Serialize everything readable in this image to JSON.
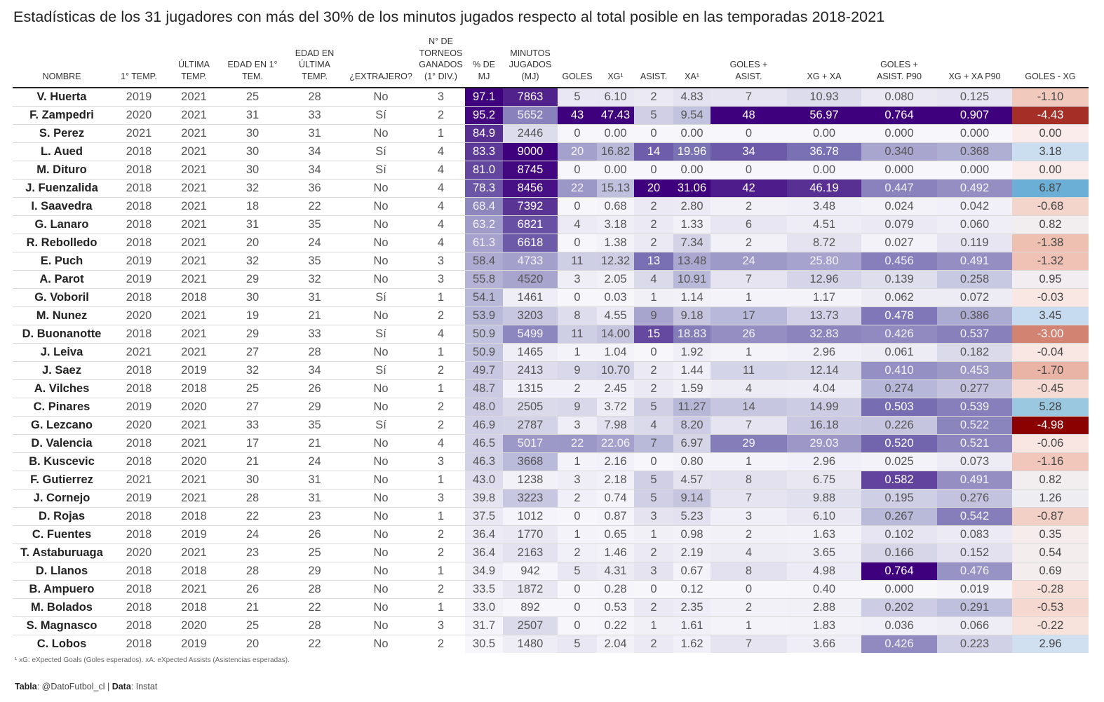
{
  "title": "Estadísticas de los 31 jugadores con más del 30% de los minutos jugados respecto al total posible en las temporadas 2018-2021",
  "columns": [
    {
      "key": "name",
      "label": "NOMBRE"
    },
    {
      "key": "first",
      "label": "1° TEMP."
    },
    {
      "key": "last",
      "label": "ÚLTIMA TEMP."
    },
    {
      "key": "age1",
      "label": "EDAD EN 1° TEM."
    },
    {
      "key": "agel",
      "label": "EDAD EN ÚLTIMA TEMP."
    },
    {
      "key": "foreign",
      "label": "¿EXTRAJERO?"
    },
    {
      "key": "titles",
      "label": "N° DE TORNEOS GANADOS (1° DIV.)"
    },
    {
      "key": "pct",
      "label": "% DE MJ"
    },
    {
      "key": "min",
      "label": "MINUTOS JUGADOS (MJ)"
    },
    {
      "key": "goals",
      "label": "GOLES"
    },
    {
      "key": "xg",
      "label": "XG¹"
    },
    {
      "key": "ast",
      "label": "ASIST."
    },
    {
      "key": "xa",
      "label": "XA¹"
    },
    {
      "key": "ga",
      "label": "GOLES + ASIST."
    },
    {
      "key": "xgxa",
      "label": "XG + XA"
    },
    {
      "key": "ga90",
      "label": "GOLES + ASIST. P90"
    },
    {
      "key": "xgxa90",
      "label": "XG + XA P90"
    },
    {
      "key": "gxg",
      "label": "GOLES - XG"
    }
  ],
  "rows": [
    [
      "V. Huerta",
      "2019",
      "2021",
      "25",
      "28",
      "No",
      "3",
      "97.1",
      "7863",
      "5",
      "6.10",
      "2",
      "4.83",
      "7",
      "10.93",
      "0.080",
      "0.125",
      "-1.10"
    ],
    [
      "F. Zampedri",
      "2020",
      "2021",
      "31",
      "33",
      "Sí",
      "2",
      "95.2",
      "5652",
      "43",
      "47.43",
      "5",
      "9.54",
      "48",
      "56.97",
      "0.764",
      "0.907",
      "-4.43"
    ],
    [
      "S. Perez",
      "2021",
      "2021",
      "30",
      "31",
      "No",
      "1",
      "84.9",
      "2446",
      "0",
      "0.00",
      "0",
      "0.00",
      "0",
      "0.00",
      "0.000",
      "0.000",
      "0.00"
    ],
    [
      "L. Aued",
      "2018",
      "2021",
      "30",
      "34",
      "Sí",
      "4",
      "83.3",
      "9000",
      "20",
      "16.82",
      "14",
      "19.96",
      "34",
      "36.78",
      "0.340",
      "0.368",
      "3.18"
    ],
    [
      "M. Dituro",
      "2018",
      "2021",
      "30",
      "34",
      "Sí",
      "4",
      "81.0",
      "8745",
      "0",
      "0.00",
      "0",
      "0.00",
      "0",
      "0.00",
      "0.000",
      "0.000",
      "0.00"
    ],
    [
      "J. Fuenzalida",
      "2018",
      "2021",
      "32",
      "36",
      "No",
      "4",
      "78.3",
      "8456",
      "22",
      "15.13",
      "20",
      "31.06",
      "42",
      "46.19",
      "0.447",
      "0.492",
      "6.87"
    ],
    [
      "I. Saavedra",
      "2018",
      "2021",
      "18",
      "22",
      "No",
      "4",
      "68.4",
      "7392",
      "0",
      "0.68",
      "2",
      "2.80",
      "2",
      "3.48",
      "0.024",
      "0.042",
      "-0.68"
    ],
    [
      "G. Lanaro",
      "2018",
      "2021",
      "31",
      "35",
      "No",
      "4",
      "63.2",
      "6821",
      "4",
      "3.18",
      "2",
      "1.33",
      "6",
      "4.51",
      "0.079",
      "0.060",
      "0.82"
    ],
    [
      "R. Rebolledo",
      "2018",
      "2021",
      "20",
      "24",
      "No",
      "4",
      "61.3",
      "6618",
      "0",
      "1.38",
      "2",
      "7.34",
      "2",
      "8.72",
      "0.027",
      "0.119",
      "-1.38"
    ],
    [
      "E. Puch",
      "2019",
      "2021",
      "32",
      "35",
      "No",
      "3",
      "58.4",
      "4733",
      "11",
      "12.32",
      "13",
      "13.48",
      "24",
      "25.80",
      "0.456",
      "0.491",
      "-1.32"
    ],
    [
      "A. Parot",
      "2019",
      "2021",
      "29",
      "32",
      "No",
      "3",
      "55.8",
      "4520",
      "3",
      "2.05",
      "4",
      "10.91",
      "7",
      "12.96",
      "0.139",
      "0.258",
      "0.95"
    ],
    [
      "G. Voboril",
      "2018",
      "2018",
      "30",
      "31",
      "Sí",
      "1",
      "54.1",
      "1461",
      "0",
      "0.03",
      "1",
      "1.14",
      "1",
      "1.17",
      "0.062",
      "0.072",
      "-0.03"
    ],
    [
      "M. Nunez",
      "2020",
      "2021",
      "19",
      "21",
      "No",
      "2",
      "53.9",
      "3203",
      "8",
      "4.55",
      "9",
      "9.18",
      "17",
      "13.73",
      "0.478",
      "0.386",
      "3.45"
    ],
    [
      "D. Buonanotte",
      "2018",
      "2021",
      "29",
      "33",
      "Sí",
      "4",
      "50.9",
      "5499",
      "11",
      "14.00",
      "15",
      "18.83",
      "26",
      "32.83",
      "0.426",
      "0.537",
      "-3.00"
    ],
    [
      "J. Leiva",
      "2021",
      "2021",
      "27",
      "28",
      "No",
      "1",
      "50.9",
      "1465",
      "1",
      "1.04",
      "0",
      "1.92",
      "1",
      "2.96",
      "0.061",
      "0.182",
      "-0.04"
    ],
    [
      "J. Saez",
      "2018",
      "2019",
      "32",
      "34",
      "Sí",
      "2",
      "49.7",
      "2413",
      "9",
      "10.70",
      "2",
      "1.44",
      "11",
      "12.14",
      "0.410",
      "0.453",
      "-1.70"
    ],
    [
      "A. Vilches",
      "2018",
      "2018",
      "25",
      "26",
      "No",
      "1",
      "48.7",
      "1315",
      "2",
      "2.45",
      "2",
      "1.59",
      "4",
      "4.04",
      "0.274",
      "0.277",
      "-0.45"
    ],
    [
      "C. Pinares",
      "2019",
      "2020",
      "27",
      "29",
      "No",
      "2",
      "48.0",
      "2505",
      "9",
      "3.72",
      "5",
      "11.27",
      "14",
      "14.99",
      "0.503",
      "0.539",
      "5.28"
    ],
    [
      "G. Lezcano",
      "2020",
      "2021",
      "33",
      "35",
      "Sí",
      "2",
      "46.9",
      "2787",
      "3",
      "7.98",
      "4",
      "8.20",
      "7",
      "16.18",
      "0.226",
      "0.522",
      "-4.98"
    ],
    [
      "D. Valencia",
      "2018",
      "2021",
      "17",
      "21",
      "No",
      "4",
      "46.5",
      "5017",
      "22",
      "22.06",
      "7",
      "6.97",
      "29",
      "29.03",
      "0.520",
      "0.521",
      "-0.06"
    ],
    [
      "B. Kuscevic",
      "2018",
      "2020",
      "21",
      "24",
      "No",
      "3",
      "46.3",
      "3668",
      "1",
      "2.16",
      "0",
      "0.80",
      "1",
      "2.96",
      "0.025",
      "0.073",
      "-1.16"
    ],
    [
      "F. Gutierrez",
      "2021",
      "2021",
      "30",
      "31",
      "No",
      "1",
      "43.0",
      "1238",
      "3",
      "2.18",
      "5",
      "4.57",
      "8",
      "6.75",
      "0.582",
      "0.491",
      "0.82"
    ],
    [
      "J. Cornejo",
      "2019",
      "2021",
      "28",
      "31",
      "No",
      "3",
      "39.8",
      "3223",
      "2",
      "0.74",
      "5",
      "9.14",
      "7",
      "9.88",
      "0.195",
      "0.276",
      "1.26"
    ],
    [
      "D. Rojas",
      "2018",
      "2018",
      "22",
      "23",
      "No",
      "1",
      "37.5",
      "1012",
      "0",
      "0.87",
      "3",
      "5.23",
      "3",
      "6.10",
      "0.267",
      "0.542",
      "-0.87"
    ],
    [
      "C. Fuentes",
      "2018",
      "2019",
      "24",
      "26",
      "No",
      "2",
      "36.4",
      "1770",
      "1",
      "0.65",
      "1",
      "0.98",
      "2",
      "1.63",
      "0.102",
      "0.083",
      "0.35"
    ],
    [
      "T. Astaburuaga",
      "2020",
      "2021",
      "23",
      "25",
      "No",
      "2",
      "36.4",
      "2163",
      "2",
      "1.46",
      "2",
      "2.19",
      "4",
      "3.65",
      "0.166",
      "0.152",
      "0.54"
    ],
    [
      "D. Llanos",
      "2018",
      "2018",
      "28",
      "29",
      "No",
      "1",
      "34.9",
      "942",
      "5",
      "4.31",
      "3",
      "0.67",
      "8",
      "4.98",
      "0.764",
      "0.476",
      "0.69"
    ],
    [
      "B. Ampuero",
      "2018",
      "2021",
      "26",
      "28",
      "No",
      "2",
      "33.5",
      "1872",
      "0",
      "0.28",
      "0",
      "0.12",
      "0",
      "0.40",
      "0.000",
      "0.019",
      "-0.28"
    ],
    [
      "M. Bolados",
      "2018",
      "2018",
      "21",
      "22",
      "No",
      "1",
      "33.0",
      "892",
      "0",
      "0.53",
      "2",
      "2.35",
      "2",
      "2.88",
      "0.202",
      "0.291",
      "-0.53"
    ],
    [
      "S. Magnasco",
      "2018",
      "2020",
      "25",
      "28",
      "No",
      "3",
      "31.7",
      "2507",
      "0",
      "0.22",
      "1",
      "1.61",
      "1",
      "1.83",
      "0.036",
      "0.066",
      "-0.22"
    ],
    [
      "C. Lobos",
      "2018",
      "2019",
      "20",
      "22",
      "No",
      "2",
      "30.5",
      "1480",
      "5",
      "2.04",
      "2",
      "1.62",
      "7",
      "3.66",
      "0.426",
      "0.223",
      "2.96"
    ]
  ],
  "footnote": "¹ xG: eXpected Goals (Goles esperados). xA: eXpected Assists (Asistencias esperadas).",
  "source": {
    "tabla_label": "Tabla",
    "tabla_value": ": @DatoFutbol_cl | ",
    "data_label": "Data",
    "data_value": ": Instat"
  },
  "colors": {
    "purple_low": "#f7f6fb",
    "purple_high": "#3f007d",
    "diverging_neg": "#8b0000",
    "diverging_pos": "#6baed6",
    "diverging_mid": "#f7f7f7"
  }
}
